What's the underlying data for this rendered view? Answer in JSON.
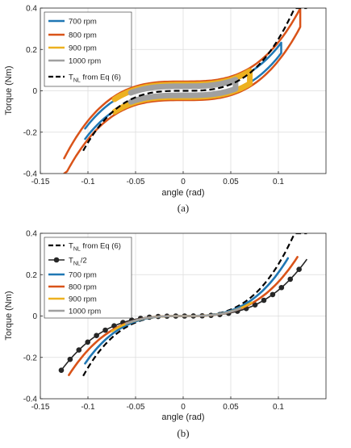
{
  "chart_data": [
    {
      "panel": "(a)",
      "type": "line",
      "xlabel": "angle (rad)",
      "ylabel": "Torque (Nm)",
      "xlim": [
        -0.15,
        0.15
      ],
      "ylim": [
        -0.4,
        0.4
      ],
      "xticks": [
        "-0.15",
        "-0.1",
        "-0.05",
        "0",
        "0.05",
        "0.1"
      ],
      "yticks": [
        "-0.4",
        "-0.2",
        "0",
        "0.2",
        "0.4"
      ],
      "grid": true,
      "legend_position": "top-left",
      "series": [
        {
          "name": "700 rpm",
          "color": "#1f77b4",
          "style": "loop",
          "x_range": [
            -0.103,
            0.103
          ],
          "loop_offset": 0.025
        },
        {
          "name": "800 rpm",
          "color": "#d95319",
          "style": "loop",
          "x_range": [
            -0.125,
            0.123
          ],
          "loop_offset": 0.045
        },
        {
          "name": "900 rpm",
          "color": "#edb120",
          "style": "thick-loop",
          "x_range": [
            -0.072,
            0.07
          ],
          "loop_offset": 0.03
        },
        {
          "name": "1000 rpm",
          "color": "#a0a0a0",
          "style": "thick-loop",
          "x_range": [
            -0.055,
            0.055
          ],
          "loop_offset": 0.022
        },
        {
          "name": "T_NL from Eq (6)",
          "color": "#000000",
          "style": "dashed",
          "x_range": [
            -0.105,
            0.13
          ],
          "cubic_coefficient": 250
        }
      ],
      "legend_labels": {
        "l700": "700 rpm",
        "l800": "800 rpm",
        "l900": "900 rpm",
        "l1000": "1000 rpm",
        "tnl_main": "T",
        "tnl_sub": "NL",
        "tnl_rest": " from Eq (6)"
      }
    },
    {
      "panel": "(b)",
      "type": "line",
      "xlabel": "angle (rad)",
      "ylabel": "Torque (Nm)",
      "xlim": [
        -0.15,
        0.15
      ],
      "ylim": [
        -0.4,
        0.4
      ],
      "xticks": [
        "-0.15",
        "-0.1",
        "-0.05",
        "0",
        "0.05",
        "0.1"
      ],
      "yticks": [
        "-0.4",
        "-0.2",
        "0",
        "0.2",
        "0.4"
      ],
      "grid": true,
      "legend_position": "top-left",
      "series": [
        {
          "name": "T_NL from Eq (6)",
          "color": "#000000",
          "style": "dashed",
          "x_range": [
            -0.105,
            0.13
          ],
          "cubic_coefficient": 250
        },
        {
          "name": "T_NL/2",
          "color": "#262626",
          "style": "markers",
          "x_range": [
            -0.128,
            0.13
          ],
          "cubic_coefficient": 125,
          "marker_step": 0.00925
        },
        {
          "name": "700 rpm",
          "color": "#1f77b4",
          "style": "line",
          "x_range": [
            -0.103,
            0.11
          ],
          "cubic_coefficient": 210
        },
        {
          "name": "800 rpm",
          "color": "#d95319",
          "style": "line",
          "x_range": [
            -0.12,
            0.12
          ],
          "cubic_coefficient": 165
        },
        {
          "name": "900 rpm",
          "color": "#edb120",
          "style": "line",
          "x_range": [
            -0.075,
            0.072
          ],
          "cubic_coefficient": 175
        },
        {
          "name": "1000 rpm",
          "color": "#a0a0a0",
          "style": "line",
          "x_range": [
            -0.06,
            0.06
          ],
          "cubic_coefficient": 170
        }
      ],
      "legend_labels": {
        "tnl_main": "T",
        "tnl_sub": "NL",
        "tnl_rest": " from Eq (6)",
        "half_main": "T",
        "half_sub": "NL",
        "half_rest": "/2",
        "l700": "700 rpm",
        "l800": "800 rpm",
        "l900": "900 rpm",
        "l1000": "1000 rpm"
      }
    }
  ],
  "captions": {
    "a": "(a)",
    "b": "(b)"
  }
}
